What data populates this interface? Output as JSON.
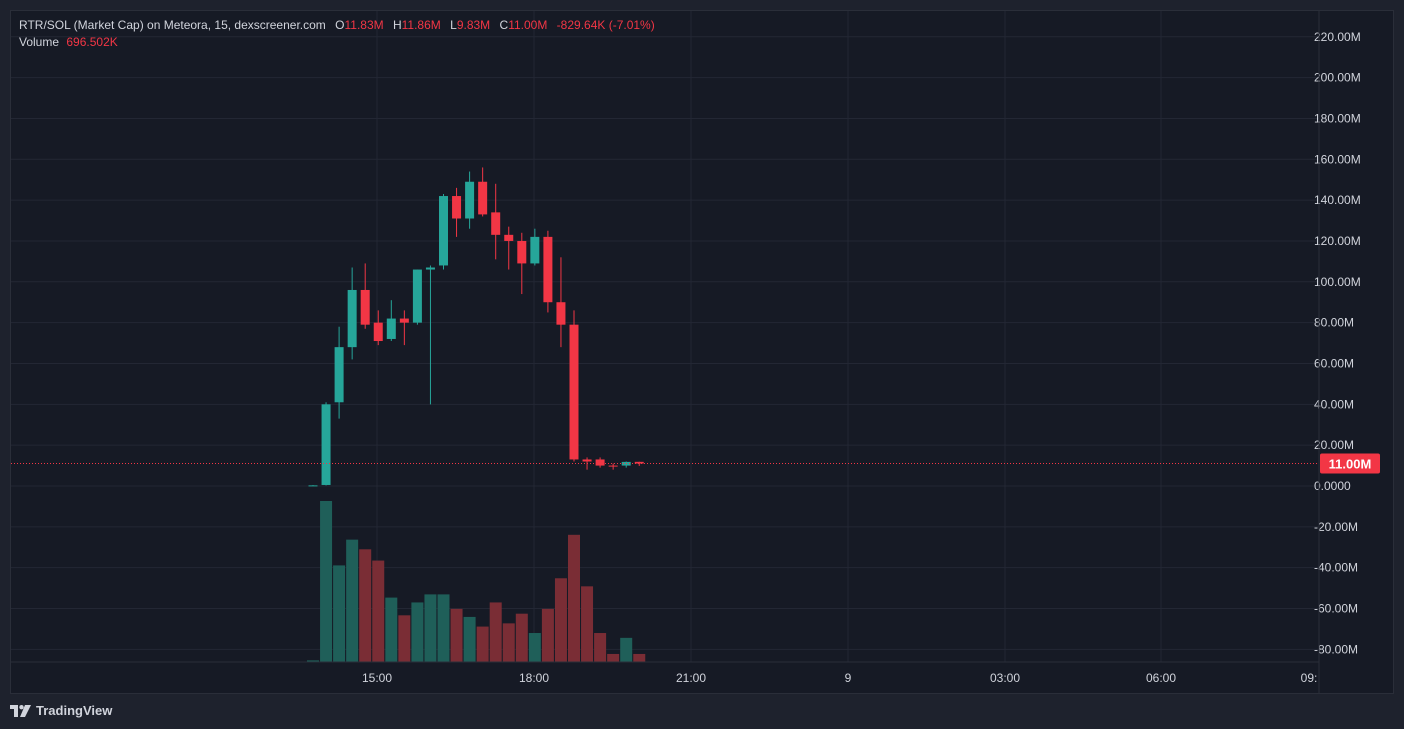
{
  "header": {
    "title": "RTR/SOL (Market Cap) on Meteora, 15, dexscreener.com",
    "ohlc": {
      "o_label": "O",
      "o_value": "11.83M",
      "h_label": "H",
      "h_value": "11.86M",
      "l_label": "L",
      "l_value": "9.83M",
      "c_label": "C",
      "c_value": "11.00M",
      "change": "-829.64K (-7.01%)"
    },
    "volume_label": "Volume",
    "volume_value": "696.502K"
  },
  "footer": {
    "brand": "TradingView",
    "logo_icon": "tradingview-logo-icon"
  },
  "colors": {
    "up": "#26a69a",
    "down": "#f23645",
    "up_volume": "#1f5f59",
    "down_volume": "#7a2d35",
    "price_line": "#f23645"
  },
  "chart_data": {
    "type": "candlestick",
    "title": "RTR/SOL (Market Cap) on Meteora, 15, dexscreener.com",
    "y_unit": "M",
    "ylim": [
      -85,
      225
    ],
    "y_ticks": [
      "220.00M",
      "200.00M",
      "180.00M",
      "160.00M",
      "140.00M",
      "120.00M",
      "100.00M",
      "80.00M",
      "60.00M",
      "40.00M",
      "20.00M",
      "0.0000",
      "-20.00M",
      "-40.00M",
      "-60.00M",
      "-80.00M"
    ],
    "x_ticks": [
      "15:00",
      "18:00",
      "21:00",
      "9",
      "03:00",
      "06:00",
      "09:"
    ],
    "last_price_label": "11.00M",
    "last_price": 11.0,
    "grid": true,
    "candles": [
      {
        "o": 0.2,
        "h": 0.4,
        "l": 0.1,
        "c": 0.3
      },
      {
        "o": 0.5,
        "h": 41,
        "l": 0.3,
        "c": 40
      },
      {
        "o": 41,
        "h": 78,
        "l": 33,
        "c": 68
      },
      {
        "o": 68,
        "h": 107,
        "l": 62,
        "c": 96
      },
      {
        "o": 96,
        "h": 109,
        "l": 77,
        "c": 79
      },
      {
        "o": 80,
        "h": 86,
        "l": 69,
        "c": 71
      },
      {
        "o": 72,
        "h": 91,
        "l": 71,
        "c": 82
      },
      {
        "o": 82,
        "h": 86,
        "l": 69,
        "c": 80
      },
      {
        "o": 80,
        "h": 106,
        "l": 79,
        "c": 106
      },
      {
        "o": 106,
        "h": 108,
        "l": 40,
        "c": 107
      },
      {
        "o": 108,
        "h": 143,
        "l": 106,
        "c": 142
      },
      {
        "o": 142,
        "h": 146,
        "l": 122,
        "c": 131
      },
      {
        "o": 131,
        "h": 154,
        "l": 126,
        "c": 149
      },
      {
        "o": 149,
        "h": 156,
        "l": 132,
        "c": 133
      },
      {
        "o": 134,
        "h": 148,
        "l": 111,
        "c": 123
      },
      {
        "o": 123,
        "h": 127,
        "l": 106,
        "c": 120
      },
      {
        "o": 120,
        "h": 124,
        "l": 94,
        "c": 109
      },
      {
        "o": 109,
        "h": 126,
        "l": 108,
        "c": 122
      },
      {
        "o": 122,
        "h": 125,
        "l": 85,
        "c": 90
      },
      {
        "o": 90,
        "h": 112,
        "l": 68,
        "c": 79
      },
      {
        "o": 79,
        "h": 86,
        "l": 12,
        "c": 13
      },
      {
        "o": 13,
        "h": 14,
        "l": 8,
        "c": 12
      },
      {
        "o": 13,
        "h": 14,
        "l": 9,
        "c": 10
      },
      {
        "o": 10,
        "h": 11,
        "l": 8,
        "c": 9.5
      },
      {
        "o": 10,
        "h": 12,
        "l": 9,
        "c": 11.8
      },
      {
        "o": 11.83,
        "h": 11.86,
        "l": 9.83,
        "c": 11.0
      }
    ],
    "volume": {
      "relative_heights": [
        0.01,
        1.0,
        0.6,
        0.76,
        0.7,
        0.63,
        0.4,
        0.29,
        0.37,
        0.42,
        0.42,
        0.33,
        0.28,
        0.22,
        0.37,
        0.24,
        0.3,
        0.18,
        0.33,
        0.52,
        0.79,
        0.47,
        0.18,
        0.05,
        0.15,
        0.05
      ]
    }
  }
}
